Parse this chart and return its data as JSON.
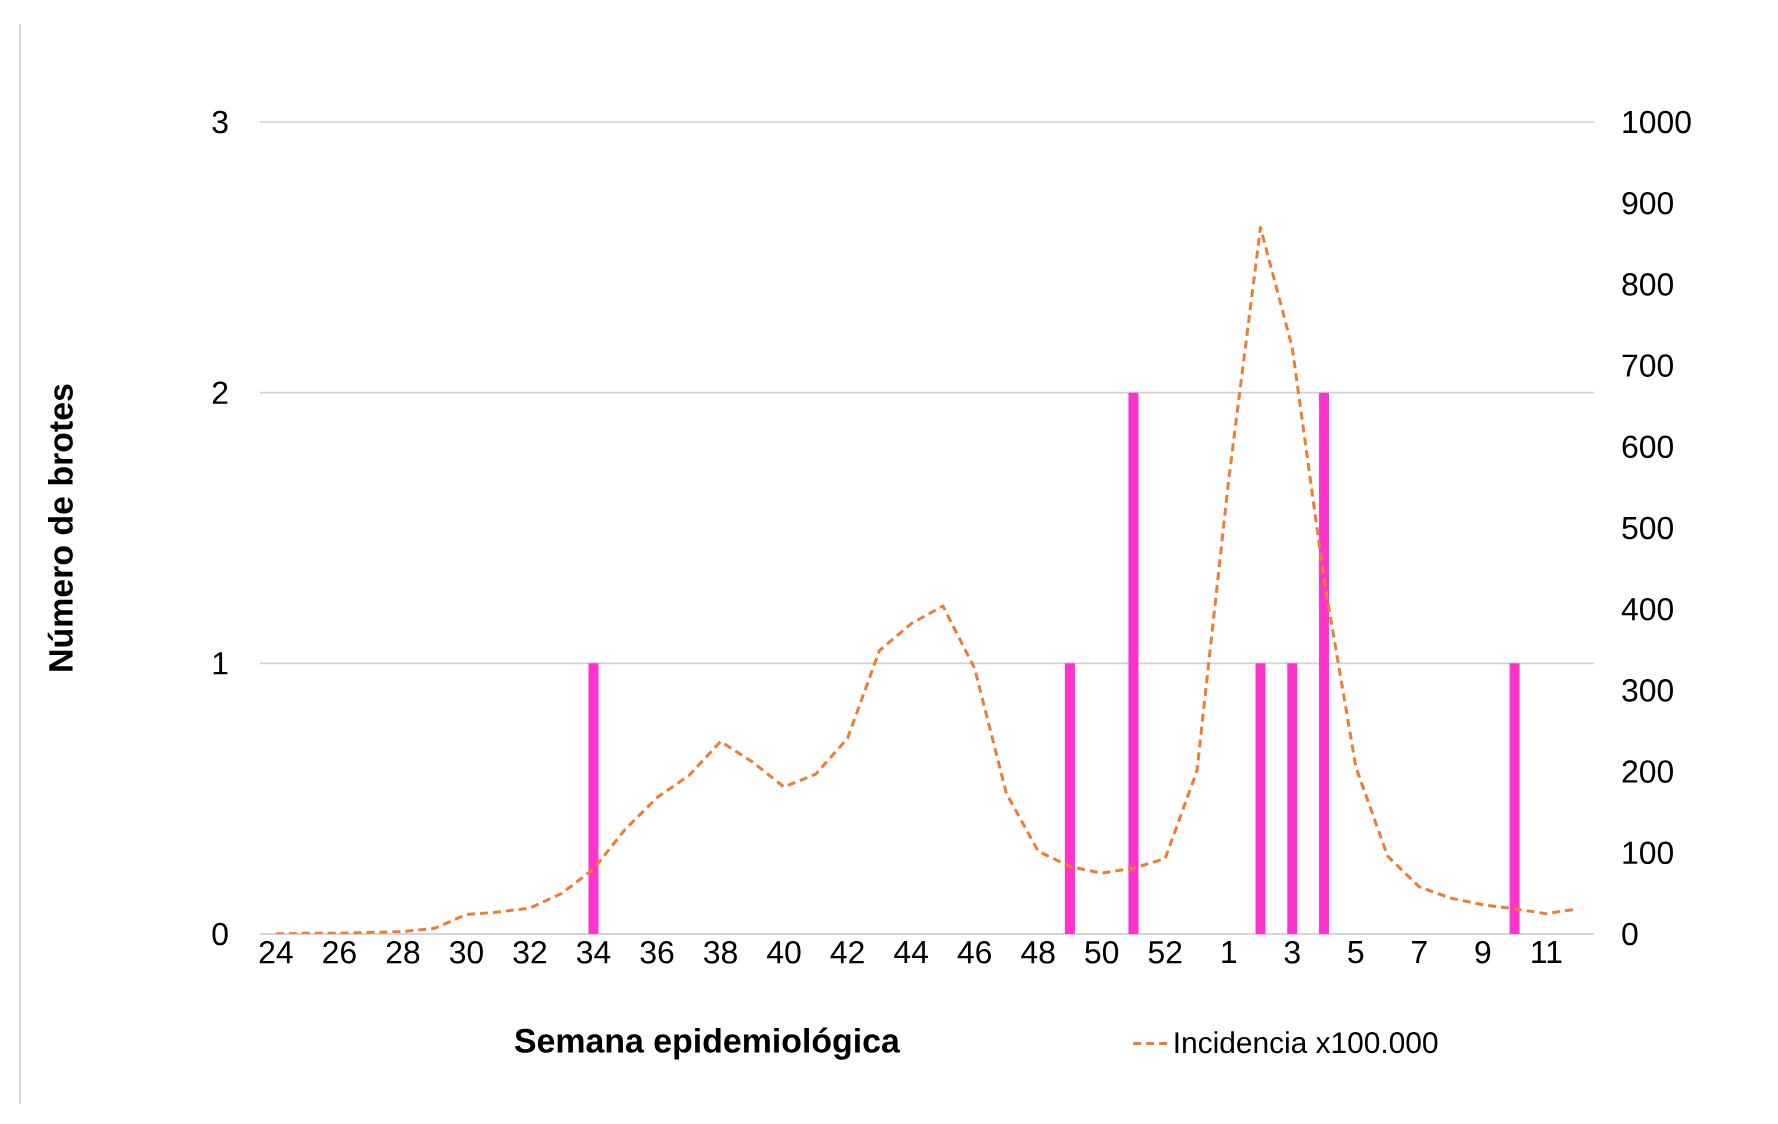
{
  "chart_data": {
    "type": "bar",
    "xlabel": "Semana epidemiológica",
    "ylabel": "Número de brotes",
    "categories": [
      "24",
      null,
      "26",
      null,
      "28",
      null,
      "30",
      null,
      "32",
      null,
      "34",
      null,
      "36",
      null,
      "38",
      null,
      "40",
      null,
      "42",
      null,
      "44",
      null,
      "46",
      null,
      "48",
      null,
      "50",
      null,
      "52",
      null,
      "1",
      null,
      "3",
      null,
      "5",
      null,
      "7",
      null,
      "9",
      null,
      "11",
      null
    ],
    "series": [
      {
        "color": "#ff33cc",
        "values": [
          null,
          null,
          null,
          null,
          null,
          null,
          null,
          null,
          null,
          null,
          1,
          null,
          null,
          null,
          null,
          null,
          null,
          null,
          null,
          null,
          null,
          null,
          null,
          null,
          null,
          1,
          null,
          2,
          null,
          null,
          null,
          1,
          1,
          2,
          null,
          null,
          null,
          null,
          null,
          1,
          null,
          null
        ]
      },
      {
        "type": "line",
        "axis": "y2",
        "name": "Incidencia x100.000",
        "color": "#ed7d31",
        "line_style": "dashed",
        "values": [
          0,
          1,
          1,
          2,
          3,
          7,
          24,
          27,
          32,
          50,
          80,
          129,
          168,
          195,
          237,
          212,
          181,
          197,
          241,
          349,
          382,
          404,
          327,
          173,
          102,
          83,
          75,
          81,
          93,
          201,
          560,
          870,
          722,
          437,
          206,
          96,
          58,
          44,
          36,
          31,
          25,
          31
        ]
      }
    ],
    "ylim": [
      0,
      3
    ],
    "yticks": [
      0,
      1,
      2,
      3
    ],
    "y2lim": [
      0,
      1000
    ],
    "y2ticks": [
      0,
      100,
      200,
      300,
      400,
      500,
      600,
      700,
      800,
      900,
      1000
    ],
    "grid": "y",
    "legend": "bottom"
  }
}
